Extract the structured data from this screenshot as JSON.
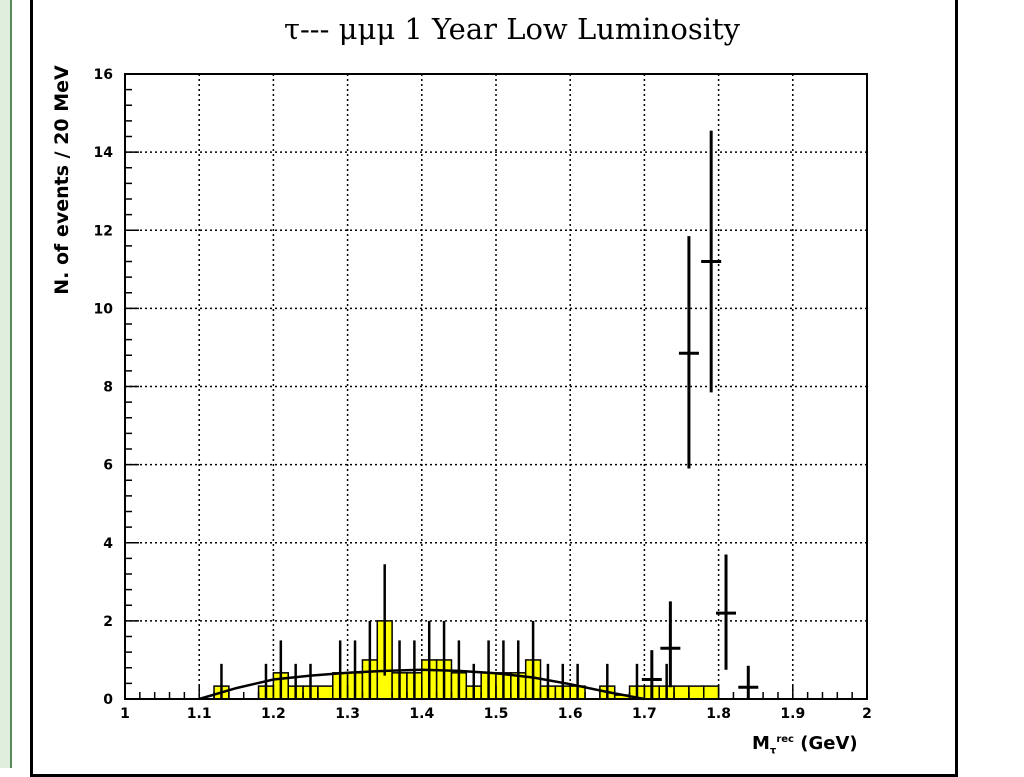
{
  "chart_data": {
    "type": "bar",
    "title": "τ--- μμμ 1 Year Low Luminosity",
    "xlabel_main": "M",
    "xlabel_sub": "τ",
    "xlabel_sup": "rec",
    "xlabel_unit": "(GeV)",
    "ylabel": "N. of events / 20 MeV",
    "xlim": [
      1,
      2
    ],
    "ylim": [
      0,
      16
    ],
    "grid": true,
    "x_ticks": [
      1,
      1.1,
      1.2,
      1.3,
      1.4,
      1.5,
      1.6,
      1.7,
      1.8,
      1.9,
      2
    ],
    "x_tick_labels": [
      "1",
      "1.1",
      "1.2",
      "1.3",
      "1.4",
      "1.5",
      "1.6",
      "1.7",
      "1.8",
      "1.9",
      "2"
    ],
    "y_ticks": [
      0,
      2,
      4,
      6,
      8,
      10,
      12,
      14,
      16
    ],
    "y_tick_labels": [
      "0",
      "2",
      "4",
      "6",
      "8",
      "10",
      "12",
      "14",
      "16"
    ],
    "background_hist": {
      "bin_width": 0.02,
      "bins": [
        {
          "x0": 1.12,
          "y": 0.33
        },
        {
          "x0": 1.18,
          "y": 0.33
        },
        {
          "x0": 1.2,
          "y": 0.67
        },
        {
          "x0": 1.22,
          "y": 0.33
        },
        {
          "x0": 1.24,
          "y": 0.33
        },
        {
          "x0": 1.26,
          "y": 0.33
        },
        {
          "x0": 1.28,
          "y": 0.67
        },
        {
          "x0": 1.3,
          "y": 0.67
        },
        {
          "x0": 1.32,
          "y": 1.0
        },
        {
          "x0": 1.34,
          "y": 2.0
        },
        {
          "x0": 1.36,
          "y": 0.67
        },
        {
          "x0": 1.38,
          "y": 0.67
        },
        {
          "x0": 1.4,
          "y": 1.0
        },
        {
          "x0": 1.42,
          "y": 1.0
        },
        {
          "x0": 1.44,
          "y": 0.67
        },
        {
          "x0": 1.46,
          "y": 0.33
        },
        {
          "x0": 1.48,
          "y": 0.67
        },
        {
          "x0": 1.5,
          "y": 0.67
        },
        {
          "x0": 1.52,
          "y": 0.67
        },
        {
          "x0": 1.54,
          "y": 1.0
        },
        {
          "x0": 1.56,
          "y": 0.33
        },
        {
          "x0": 1.58,
          "y": 0.33
        },
        {
          "x0": 1.6,
          "y": 0.33
        },
        {
          "x0": 1.64,
          "y": 0.33
        },
        {
          "x0": 1.66,
          "y": 0.1
        },
        {
          "x0": 1.68,
          "y": 0.33
        },
        {
          "x0": 1.7,
          "y": 0.33
        },
        {
          "x0": 1.72,
          "y": 0.33
        },
        {
          "x0": 1.74,
          "y": 0.33
        },
        {
          "x0": 1.76,
          "y": 0.33
        },
        {
          "x0": 1.78,
          "y": 0.33
        }
      ]
    },
    "background_errors": [
      {
        "x": 1.13,
        "y": 0.33,
        "lo": 0,
        "hi": 0.9
      },
      {
        "x": 1.19,
        "y": 0.33,
        "lo": 0,
        "hi": 0.9
      },
      {
        "x": 1.21,
        "y": 0.67,
        "lo": 0,
        "hi": 1.5
      },
      {
        "x": 1.23,
        "y": 0.33,
        "lo": 0,
        "hi": 0.9
      },
      {
        "x": 1.25,
        "y": 0.33,
        "lo": 0,
        "hi": 0.9
      },
      {
        "x": 1.29,
        "y": 0.67,
        "lo": 0,
        "hi": 1.5
      },
      {
        "x": 1.31,
        "y": 0.67,
        "lo": 0,
        "hi": 1.5
      },
      {
        "x": 1.33,
        "y": 1.0,
        "lo": 0,
        "hi": 2.0
      },
      {
        "x": 1.35,
        "y": 2.0,
        "lo": 0.6,
        "hi": 3.45
      },
      {
        "x": 1.37,
        "y": 0.67,
        "lo": 0,
        "hi": 1.5
      },
      {
        "x": 1.39,
        "y": 0.67,
        "lo": 0,
        "hi": 1.5
      },
      {
        "x": 1.41,
        "y": 1.0,
        "lo": 0,
        "hi": 2.0
      },
      {
        "x": 1.43,
        "y": 1.0,
        "lo": 0,
        "hi": 2.0
      },
      {
        "x": 1.45,
        "y": 0.67,
        "lo": 0,
        "hi": 1.5
      },
      {
        "x": 1.47,
        "y": 0.33,
        "lo": 0,
        "hi": 0.9
      },
      {
        "x": 1.49,
        "y": 0.67,
        "lo": 0,
        "hi": 1.5
      },
      {
        "x": 1.51,
        "y": 0.67,
        "lo": 0,
        "hi": 1.5
      },
      {
        "x": 1.53,
        "y": 0.67,
        "lo": 0,
        "hi": 1.5
      },
      {
        "x": 1.55,
        "y": 1.0,
        "lo": 0,
        "hi": 2.0
      },
      {
        "x": 1.57,
        "y": 0.33,
        "lo": 0,
        "hi": 0.9
      },
      {
        "x": 1.59,
        "y": 0.33,
        "lo": 0,
        "hi": 0.9
      },
      {
        "x": 1.61,
        "y": 0.33,
        "lo": 0,
        "hi": 0.9
      },
      {
        "x": 1.65,
        "y": 0.33,
        "lo": 0,
        "hi": 0.9
      },
      {
        "x": 1.69,
        "y": 0.33,
        "lo": 0,
        "hi": 0.9
      },
      {
        "x": 1.71,
        "y": 0.33,
        "lo": 0,
        "hi": 0.9
      },
      {
        "x": 1.73,
        "y": 0.33,
        "lo": 0,
        "hi": 0.9
      }
    ],
    "signal_points": [
      {
        "x": 1.71,
        "y": 0.5,
        "lo": 0.0,
        "hi": 1.25
      },
      {
        "x": 1.735,
        "y": 1.3,
        "lo": 0.3,
        "hi": 2.5
      },
      {
        "x": 1.76,
        "y": 8.85,
        "lo": 5.9,
        "hi": 11.85
      },
      {
        "x": 1.79,
        "y": 11.2,
        "lo": 7.85,
        "hi": 14.55
      },
      {
        "x": 1.81,
        "y": 2.2,
        "lo": 0.75,
        "hi": 3.7
      },
      {
        "x": 1.84,
        "y": 0.3,
        "lo": 0.0,
        "hi": 0.85
      }
    ],
    "fit_curve": {
      "x": [
        1.1,
        1.15,
        1.2,
        1.25,
        1.3,
        1.35,
        1.4,
        1.45,
        1.5,
        1.55,
        1.6,
        1.65,
        1.7
      ],
      "y": [
        0.0,
        0.28,
        0.5,
        0.6,
        0.67,
        0.72,
        0.75,
        0.72,
        0.66,
        0.55,
        0.38,
        0.18,
        0.0
      ]
    },
    "colors": {
      "histogram_fill": "#ffff00",
      "histogram_edge": "#000000",
      "axis": "#000000",
      "grid": "#000000"
    }
  }
}
